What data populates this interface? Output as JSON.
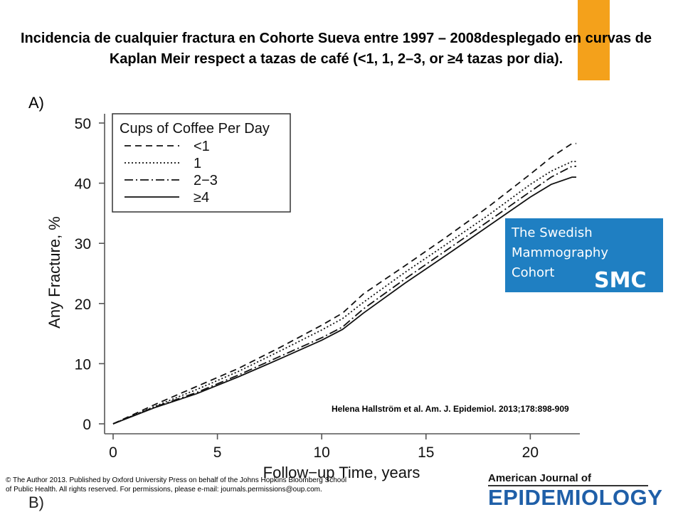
{
  "title": "Incidencia de cualquier fractura en Cohorte Sueva entre 1997 – 2008desplegado en curvas de Kaplan Meir respect a tazas de café (<1, 1, 2–3, or ≥4 tazas por dia).",
  "panel_a_label": "A)",
  "panel_b_label": "B)",
  "colors": {
    "accent_tab": "#f4a11b",
    "smc_blue": "#1f7fc2",
    "journal_blue": "#1f5fa8"
  },
  "smc_logo": {
    "line1": "The Swedish",
    "line2": "Mammography",
    "line3": "Cohort",
    "abbr": "SMC"
  },
  "citation": "Helena Hallström et al. Am. J. Epidemiol. 2013;178:898-909",
  "copyright": "© The Author 2013. Published by Oxford University Press on behalf of the Johns Hopkins Bloomberg School of Public Health. All rights reserved. For permissions, please e-mail: journals.permissions@oup.com.",
  "journal_logo": {
    "top": "American Journal of",
    "main": "EPIDEMIOLOGY"
  },
  "chart_data": {
    "type": "line",
    "xlabel": "Follow−up Time, years",
    "ylabel": "Any Fracture, %",
    "xlim": [
      0,
      22
    ],
    "ylim": [
      0,
      50
    ],
    "xticks": [
      0,
      5,
      10,
      15,
      20
    ],
    "yticks": [
      0,
      10,
      20,
      30,
      40,
      50
    ],
    "legend_title": "Cups of Coffee Per Day",
    "legend_position": "top-left",
    "grid": false,
    "series": [
      {
        "name": "<1",
        "style": "dashed",
        "x": [
          0,
          2,
          4,
          6,
          8,
          10,
          11,
          12,
          14,
          16,
          18,
          20,
          21,
          22
        ],
        "y": [
          0,
          3.2,
          6.2,
          9.2,
          12.7,
          16.4,
          18.4,
          21.6,
          26.3,
          31.1,
          36.1,
          41.5,
          44.3,
          46.6
        ]
      },
      {
        "name": "1",
        "style": "dotted",
        "x": [
          0,
          2,
          4,
          6,
          8,
          10,
          11,
          12,
          14,
          16,
          18,
          20,
          21,
          22
        ],
        "y": [
          0,
          2.9,
          5.7,
          8.7,
          12.1,
          15.6,
          17.5,
          20.2,
          25.2,
          29.9,
          34.7,
          39.8,
          42.0,
          43.6
        ]
      },
      {
        "name": "2−3",
        "style": "dashdot",
        "x": [
          0,
          2,
          4,
          6,
          8,
          10,
          11,
          12,
          14,
          16,
          18,
          20,
          21,
          22
        ],
        "y": [
          0,
          2.8,
          5.2,
          8.1,
          11.2,
          14.3,
          16.1,
          19.1,
          24.1,
          28.9,
          33.7,
          38.6,
          41.0,
          42.8
        ]
      },
      {
        "name": "≥4",
        "style": "solid",
        "x": [
          0,
          2,
          4,
          6,
          8,
          10,
          11,
          12,
          14,
          16,
          18,
          20,
          21,
          22
        ],
        "y": [
          0,
          2.7,
          5.0,
          7.8,
          10.8,
          13.9,
          15.7,
          18.4,
          23.4,
          28.1,
          32.9,
          37.7,
          39.8,
          41.0
        ]
      }
    ]
  }
}
